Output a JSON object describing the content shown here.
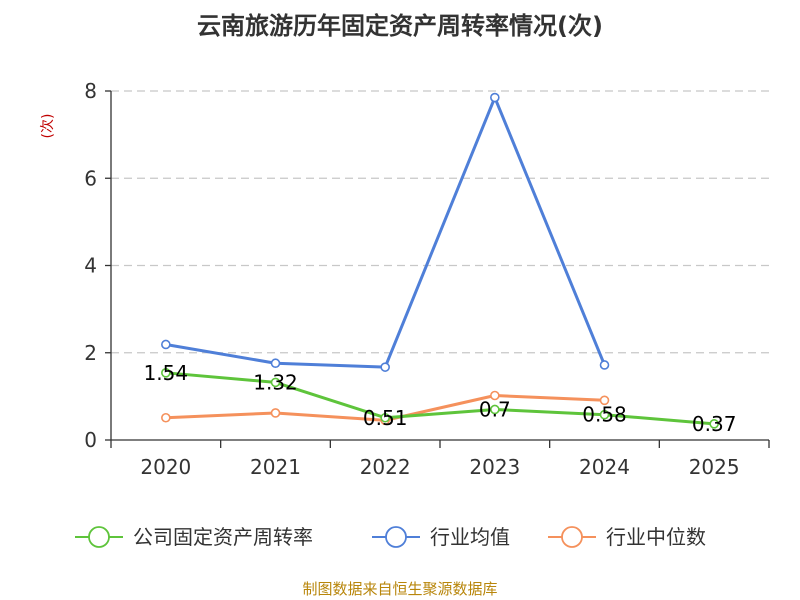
{
  "chart_data": {
    "type": "line",
    "title": "云南旅游历年固定资产周转率情况(次)",
    "ylabel": "(次)",
    "xlabel": "",
    "categories": [
      "2020",
      "2021",
      "2022",
      "2023",
      "2024",
      "2025"
    ],
    "ylim": [
      0,
      8
    ],
    "yticks": [
      0,
      2,
      4,
      6,
      8
    ],
    "grid": true,
    "legend_position": "bottom",
    "series": [
      {
        "name": "公司固定资产周转率",
        "color": "#5ec43b",
        "values": [
          1.54,
          1.32,
          0.51,
          0.7,
          0.58,
          0.37
        ],
        "labels": [
          "1.54",
          "1.32",
          "0.51",
          "0.7",
          "0.58",
          "0.37"
        ]
      },
      {
        "name": "行业均值",
        "color": "#4f7fd8",
        "values": [
          2.19,
          1.76,
          1.67,
          7.85,
          1.72,
          null
        ]
      },
      {
        "name": "行业中位数",
        "color": "#f5915c",
        "values": [
          0.51,
          0.62,
          0.45,
          1.02,
          0.91,
          null
        ]
      }
    ]
  },
  "source": "制图数据来自恒生聚源数据库"
}
